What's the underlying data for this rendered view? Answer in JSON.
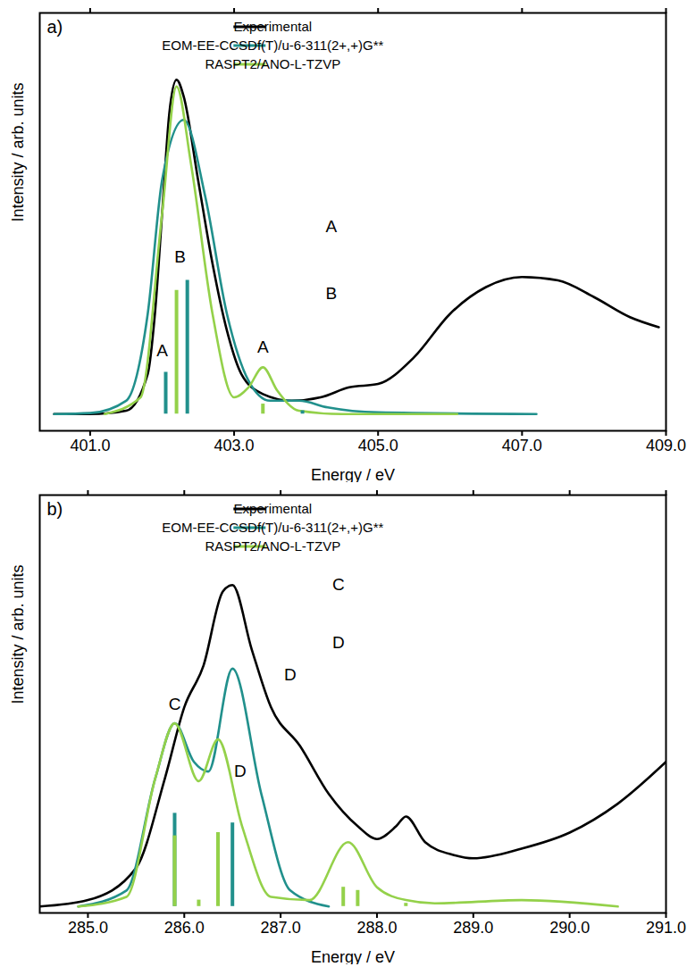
{
  "chart_data": [
    {
      "type": "line",
      "title": "a)",
      "x_label": "Energy / eV",
      "y_label": "Intensity / arb. units",
      "xlim": [
        400.3,
        409.0
      ],
      "xticks": [
        {
          "value": 401,
          "label": "401.0"
        },
        {
          "value": 403,
          "label": "403.0"
        },
        {
          "value": 405,
          "label": "405.0"
        },
        {
          "value": 407,
          "label": "407.0"
        },
        {
          "value": 409,
          "label": "409.0"
        }
      ],
      "ylim": [
        -0.05,
        1.2
      ],
      "tick_labels": "x",
      "grid": false,
      "legend": "top",
      "series": [
        {
          "name": "Experimental",
          "color": "#000000",
          "x": [
            400.5,
            401.0,
            401.5,
            401.8,
            401.9,
            402.0,
            402.1,
            402.2,
            402.3,
            402.5,
            402.7,
            402.9,
            403.1,
            403.4,
            403.8,
            404.2,
            404.6,
            405.0,
            405.5,
            406.0,
            406.5,
            407.0,
            407.5,
            408.0,
            408.5,
            408.9
          ],
          "values": [
            0.0,
            0.0,
            0.01,
            0.12,
            0.3,
            0.6,
            0.9,
            1.0,
            0.95,
            0.7,
            0.45,
            0.25,
            0.12,
            0.06,
            0.04,
            0.05,
            0.08,
            0.09,
            0.17,
            0.3,
            0.38,
            0.41,
            0.4,
            0.35,
            0.29,
            0.26
          ]
        },
        {
          "name": "EOM-EE-CCSDf(T)/u-6-311(2+,+)G**",
          "color": "#21908c",
          "x": [
            400.5,
            401.0,
            401.5,
            401.8,
            402.0,
            402.3,
            402.6,
            402.9,
            403.2,
            403.5,
            403.9,
            404.3,
            405.0,
            407.2
          ],
          "values": [
            0.0,
            0.003,
            0.04,
            0.3,
            0.7,
            0.88,
            0.65,
            0.3,
            0.1,
            0.04,
            0.04,
            0.02,
            0.005,
            0.0
          ],
          "sticks": {
            "x": [
              402.05,
              402.35,
              403.95
            ],
            "values": [
              0.125,
              0.4,
              0.01
            ]
          }
        },
        {
          "name": "RASPT2/ANO-L-TZVP",
          "color": "#94d14a",
          "x": [
            401.2,
            401.7,
            402.0,
            402.2,
            402.4,
            402.7,
            403.0,
            403.2,
            403.4,
            403.6,
            403.9,
            404.5,
            406.1
          ],
          "values": [
            0.0,
            0.05,
            0.6,
            0.98,
            0.75,
            0.3,
            0.05,
            0.08,
            0.14,
            0.07,
            0.01,
            0.0,
            0.0
          ],
          "sticks": {
            "x": [
              402.2,
              403.4
            ],
            "values": [
              0.37,
              0.03
            ]
          }
        }
      ],
      "annotations": [
        {
          "text": "A",
          "x": 402.0,
          "y": 0.19
        },
        {
          "text": "B",
          "x": 402.25,
          "y": 0.47
        },
        {
          "text": "A",
          "x": 403.4,
          "y": 0.2
        },
        {
          "text": "A",
          "x": 404.35,
          "y": 0.56
        },
        {
          "text": "B",
          "x": 404.35,
          "y": 0.36
        }
      ]
    },
    {
      "type": "line",
      "title": "b)",
      "x_label": "Energy / eV",
      "y_label": "Intensity / arb. units",
      "xlim": [
        284.5,
        291.0
      ],
      "xticks": [
        {
          "value": 285,
          "label": "285.0"
        },
        {
          "value": 286,
          "label": "286.0"
        },
        {
          "value": 287,
          "label": "287.0"
        },
        {
          "value": 288,
          "label": "288.0"
        },
        {
          "value": 289,
          "label": "289.0"
        },
        {
          "value": 290,
          "label": "290.0"
        },
        {
          "value": 291,
          "label": "291.0"
        }
      ],
      "ylim": [
        -0.02,
        1.28
      ],
      "tick_labels": "x",
      "grid": false,
      "legend": "top",
      "series": [
        {
          "name": "Experimental",
          "color": "#000000",
          "x": [
            284.5,
            285.0,
            285.5,
            285.8,
            286.0,
            286.2,
            286.4,
            286.5,
            286.7,
            286.9,
            287.2,
            287.5,
            287.8,
            288.0,
            288.2,
            288.3,
            288.5,
            288.8,
            289.0,
            289.5,
            290.0,
            290.5,
            291.0
          ],
          "values": [
            0.0,
            0.02,
            0.12,
            0.4,
            0.62,
            0.75,
            0.98,
            1.0,
            0.8,
            0.62,
            0.5,
            0.35,
            0.25,
            0.21,
            0.25,
            0.28,
            0.2,
            0.16,
            0.15,
            0.18,
            0.23,
            0.32,
            0.45
          ]
        },
        {
          "name": "EOM-EE-CCSDf(T)/u-6-311(2+,+)G**",
          "color": "#21908c",
          "x": [
            284.9,
            285.4,
            285.7,
            285.9,
            286.1,
            286.25,
            286.5,
            286.8,
            287.1,
            287.5
          ],
          "values": [
            0.0,
            0.05,
            0.4,
            0.57,
            0.45,
            0.42,
            0.74,
            0.35,
            0.05,
            0.0
          ],
          "sticks": {
            "x": [
              285.9,
              286.5
            ],
            "values": [
              0.29,
              0.26
            ]
          }
        },
        {
          "name": "RASPT2/ANO-L-TZVP",
          "color": "#94d14a",
          "x": [
            284.9,
            285.4,
            285.7,
            285.9,
            286.15,
            286.35,
            286.6,
            286.9,
            287.3,
            287.7,
            288.0,
            288.3,
            288.6,
            289.5,
            290.5
          ],
          "values": [
            0.0,
            0.03,
            0.4,
            0.57,
            0.39,
            0.52,
            0.25,
            0.03,
            0.02,
            0.2,
            0.06,
            0.02,
            0.01,
            0.02,
            0.0
          ],
          "sticks": {
            "x": [
              285.9,
              286.15,
              286.35,
              287.65,
              287.8,
              288.3
            ],
            "values": [
              0.22,
              0.02,
              0.23,
              0.06,
              0.05,
              0.01
            ]
          }
        }
      ],
      "annotations": [
        {
          "text": "C",
          "x": 285.9,
          "y": 0.63
        },
        {
          "text": "D",
          "x": 286.58,
          "y": 0.42
        },
        {
          "text": "D",
          "x": 287.1,
          "y": 0.72
        },
        {
          "text": "C",
          "x": 287.6,
          "y": 1.0
        },
        {
          "text": "D",
          "x": 287.6,
          "y": 0.82
        }
      ]
    }
  ]
}
